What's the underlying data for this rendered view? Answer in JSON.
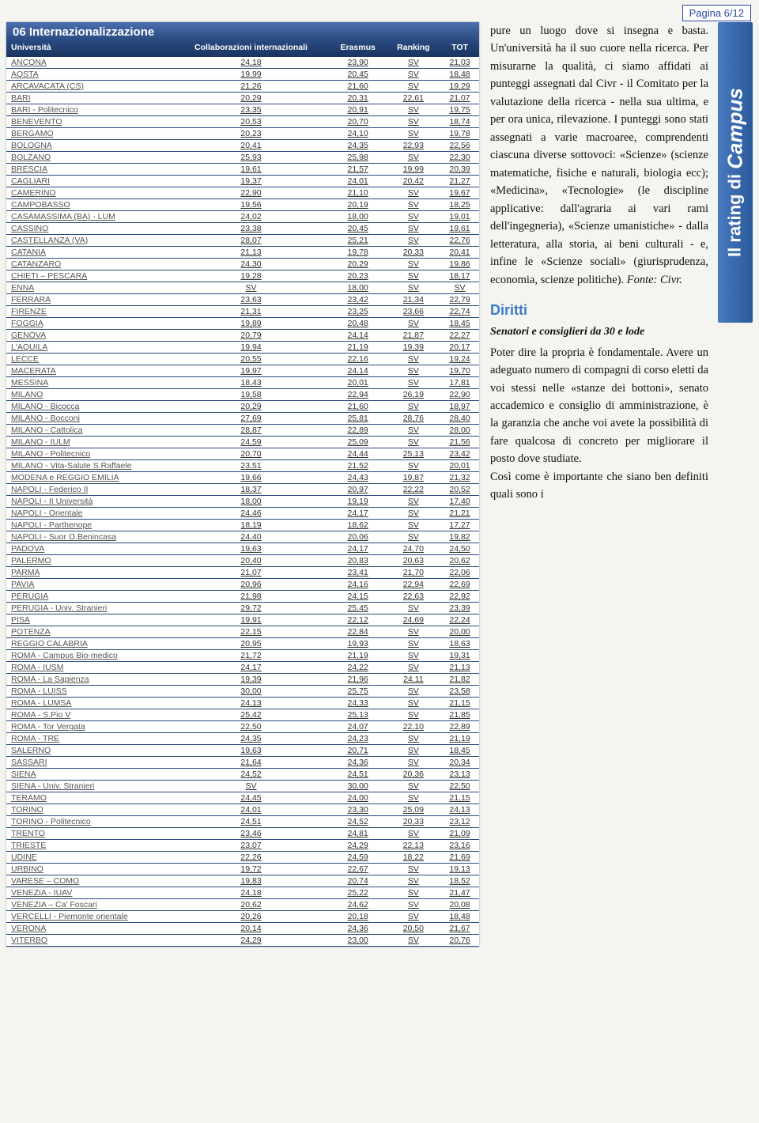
{
  "page_label": "Pagina 6/12",
  "side_banner": {
    "prefix": "Il rating di",
    "brand": "Campus"
  },
  "table": {
    "title": "06 Internazionalizzazione",
    "columns": [
      "Università",
      "Collaborazioni internazionali",
      "Erasmus",
      "Ranking",
      "TOT"
    ],
    "rows": [
      [
        "ANCONA",
        "24,18",
        "23,90",
        "SV",
        "21,03"
      ],
      [
        "AOSTA",
        "19,99",
        "20,45",
        "SV",
        "18,48"
      ],
      [
        "ARCAVACATA (CS)",
        "21,26",
        "21,60",
        "SV",
        "19,29"
      ],
      [
        "BARI",
        "20,29",
        "20,31",
        "22,61",
        "21,07"
      ],
      [
        "BARI - Politecnico",
        "23,35",
        "20,91",
        "SV",
        "19,75"
      ],
      [
        "BENEVENTO",
        "20,53",
        "20,70",
        "SV",
        "18,74"
      ],
      [
        "BERGAMO",
        "20,23",
        "24,10",
        "SV",
        "19,78"
      ],
      [
        "BOLOGNA",
        "20,41",
        "24,35",
        "22,93",
        "22,56"
      ],
      [
        "BOLZANO",
        "25,93",
        "25,98",
        "SV",
        "22,30"
      ],
      [
        "BRESCIA",
        "19,61",
        "21,57",
        "19,99",
        "20,39"
      ],
      [
        "CAGLIARI",
        "19,37",
        "24,01",
        "20,42",
        "21,27"
      ],
      [
        "CAMERINO",
        "22,90",
        "21,10",
        "SV",
        "19,67"
      ],
      [
        "CAMPOBASSO",
        "19,56",
        "20,19",
        "SV",
        "18,25"
      ],
      [
        "CASAMASSIMA (BA) - LUM",
        "24,02",
        "18,00",
        "SV",
        "19,01"
      ],
      [
        "CASSINO",
        "23,38",
        "20,45",
        "SV",
        "19,61"
      ],
      [
        "CASTELLANZA (VA)",
        "28,07",
        "25,21",
        "SV",
        "22,76"
      ],
      [
        "CATANIA",
        "21,13",
        "19,78",
        "20,33",
        "20,41"
      ],
      [
        "CATANZARO",
        "24,30",
        "20,29",
        "SV",
        "19,86"
      ],
      [
        "CHIETI – PESCARA",
        "19,28",
        "20,23",
        "SV",
        "18,17"
      ],
      [
        "ENNA",
        "SV",
        "18,00",
        "SV",
        "SV"
      ],
      [
        "FERRARA",
        "23,63",
        "23,42",
        "21,34",
        "22,79"
      ],
      [
        "FIRENZE",
        "21,31",
        "23,25",
        "23,66",
        "22,74"
      ],
      [
        "FOGGIA",
        "19,89",
        "20,48",
        "SV",
        "18,45"
      ],
      [
        "GENOVA",
        "20,79",
        "24,14",
        "21,87",
        "22,27"
      ],
      [
        "L'AQUILA",
        "19,94",
        "21,19",
        "19,39",
        "20,17"
      ],
      [
        "LECCE",
        "20,55",
        "22,16",
        "SV",
        "19,24"
      ],
      [
        "MACERATA",
        "19,97",
        "24,14",
        "SV",
        "19,70"
      ],
      [
        "MESSINA",
        "18,43",
        "20,01",
        "SV",
        "17,81"
      ],
      [
        "MILANO",
        "19,58",
        "22,94",
        "26,19",
        "22,90"
      ],
      [
        "MILANO - Bicocca",
        "20,29",
        "21,60",
        "SV",
        "18,97"
      ],
      [
        "MILANO - Bocconi",
        "27,69",
        "25,81",
        "28,76",
        "28,40"
      ],
      [
        "MILANO - Cattolica",
        "28,87",
        "22,89",
        "SV",
        "28,00"
      ],
      [
        "MILANO - IULM",
        "24,59",
        "25,09",
        "SV",
        "21,56"
      ],
      [
        "MILANO - Politecnico",
        "20,70",
        "24,44",
        "25,13",
        "23,42"
      ],
      [
        "MILANO - Vita-Salute S.Raffaele",
        "23,51",
        "21,52",
        "SV",
        "20,01"
      ],
      [
        "MODENA e REGGIO EMILIA",
        "19,66",
        "24,43",
        "19,87",
        "21,32"
      ],
      [
        "NAPOLI - Federico II",
        "18,37",
        "20,97",
        "22,22",
        "20,52"
      ],
      [
        "NAPOLI - II Università",
        "18,00",
        "19,19",
        "SV",
        "17,40"
      ],
      [
        "NAPOLI - Orientale",
        "24,46",
        "24,17",
        "SV",
        "21,21"
      ],
      [
        "NAPOLI - Parthenope",
        "18,19",
        "18,62",
        "SV",
        "17,27"
      ],
      [
        "NAPOLI - Suor O.Benincasa",
        "24,40",
        "20,06",
        "SV",
        "19,82"
      ],
      [
        "PADOVA",
        "19,63",
        "24,17",
        "24,70",
        "24,50"
      ],
      [
        "PALERMO",
        "20,40",
        "20,83",
        "20,63",
        "20,62"
      ],
      [
        "PARMA",
        "21,07",
        "23,41",
        "21,70",
        "22,06"
      ],
      [
        "PAVIA",
        "20,96",
        "24,16",
        "22,94",
        "22,69"
      ],
      [
        "PERUGIA",
        "21,98",
        "24,15",
        "22,63",
        "22,92"
      ],
      [
        "PERUGIA - Univ. Stranieri",
        "29,72",
        "25,45",
        "SV",
        "23,39"
      ],
      [
        "PISA",
        "19,91",
        "22,12",
        "24,69",
        "22,24"
      ],
      [
        "POTENZA",
        "22,15",
        "22,84",
        "SV",
        "20,00"
      ],
      [
        "REGGIO CALABRIA",
        "20,95",
        "19,93",
        "SV",
        "18,63"
      ],
      [
        "ROMA - Campus Bio-medico",
        "21,72",
        "21,19",
        "SV",
        "19,31"
      ],
      [
        "ROMA - IUSM",
        "24,17",
        "24,22",
        "SV",
        "21,13"
      ],
      [
        "ROMA - La Sapienza",
        "19,39",
        "21,96",
        "24,11",
        "21,82"
      ],
      [
        "ROMA - LUISS",
        "30,00",
        "25,75",
        "SV",
        "23,58"
      ],
      [
        "ROMA - LUMSA",
        "24,13",
        "24,33",
        "SV",
        "21,15"
      ],
      [
        "ROMA - S.Pio V",
        "25,42",
        "25,13",
        "SV",
        "21,85"
      ],
      [
        "ROMA - Tor Vergata",
        "22,50",
        "24,07",
        "22,10",
        "22,89"
      ],
      [
        "ROMA - TRE",
        "24,35",
        "24,23",
        "SV",
        "21,19"
      ],
      [
        "SALERNO",
        "19,63",
        "20,71",
        "SV",
        "18,45"
      ],
      [
        "SASSARI",
        "21,64",
        "24,36",
        "SV",
        "20,34"
      ],
      [
        "SIENA",
        "24,52",
        "24,51",
        "20,36",
        "23,13"
      ],
      [
        "SIENA - Univ. Stranieri",
        "SV",
        "30,00",
        "SV",
        "22,50"
      ],
      [
        "TERAMO",
        "24,45",
        "24,00",
        "SV",
        "21,15"
      ],
      [
        "TORINO",
        "24,01",
        "23,30",
        "25,09",
        "24,13"
      ],
      [
        "TORINO - Politecnico",
        "24,51",
        "24,52",
        "20,33",
        "23,12"
      ],
      [
        "TRENTO",
        "23,46",
        "24,81",
        "SV",
        "21,09"
      ],
      [
        "TRIESTE",
        "23,07",
        "24,29",
        "22,13",
        "23,16"
      ],
      [
        "UDINE",
        "22,26",
        "24,59",
        "18,22",
        "21,69"
      ],
      [
        "URBINO",
        "19,72",
        "22,67",
        "SV",
        "19,13"
      ],
      [
        "VARESE – COMO",
        "19,83",
        "20,74",
        "SV",
        "18,52"
      ],
      [
        "VENEZIA - IUAV",
        "24,18",
        "25,22",
        "SV",
        "21,47"
      ],
      [
        "VENEZIA – Ca' Foscari",
        "20,62",
        "24,62",
        "SV",
        "20,08"
      ],
      [
        "VERCELLI - Piemonte orientale",
        "20,26",
        "20,18",
        "SV",
        "18,48"
      ],
      [
        "VERONA",
        "20,14",
        "24,36",
        "20,50",
        "21,67"
      ],
      [
        "VITERBO",
        "24,29",
        "23,00",
        "SV",
        "20,76"
      ]
    ]
  },
  "article": {
    "para1": "pure un luogo dove si insegna e basta. Un'università ha il suo cuore nella ricerca. Per misurarne la qualità, ci siamo affidati ai punteggi assegnati dal Civr - il Comitato per la valutazione della ricerca - nella sua ultima, e per ora unica, rilevazione. I punteggi sono stati assegnati a varie macroaree, comprendenti ciascuna diverse sottovoci: «Scienze» (scienze matematiche, fisiche e naturali, biologia ecc); «Medicina», «Tecnologie» (le discipline applicative: dall'agraria ai vari rami dell'ingegneria), «Scienze umanistiche» - dalla letteratura, alla storia, ai beni culturali - e, infine le «Scienze sociali» (giurisprudenza, economia, scienze politiche). ",
    "source": "Fonte: Civr.",
    "heading": "Diritti",
    "subheading": "Senatori e consiglieri da 30 e lode",
    "para2": "Poter dire la propria è fondamentale. Avere un adeguato numero di compagni di corso eletti da voi stessi nelle «stanze dei bottoni», senato accademico e consiglio di amministrazione, è la garanzia che anche voi avete la possibilità di fare qualcosa di concreto per migliorare il posto dove studiate.",
    "para3": "Così come è importante che siano ben definiti quali sono i"
  }
}
